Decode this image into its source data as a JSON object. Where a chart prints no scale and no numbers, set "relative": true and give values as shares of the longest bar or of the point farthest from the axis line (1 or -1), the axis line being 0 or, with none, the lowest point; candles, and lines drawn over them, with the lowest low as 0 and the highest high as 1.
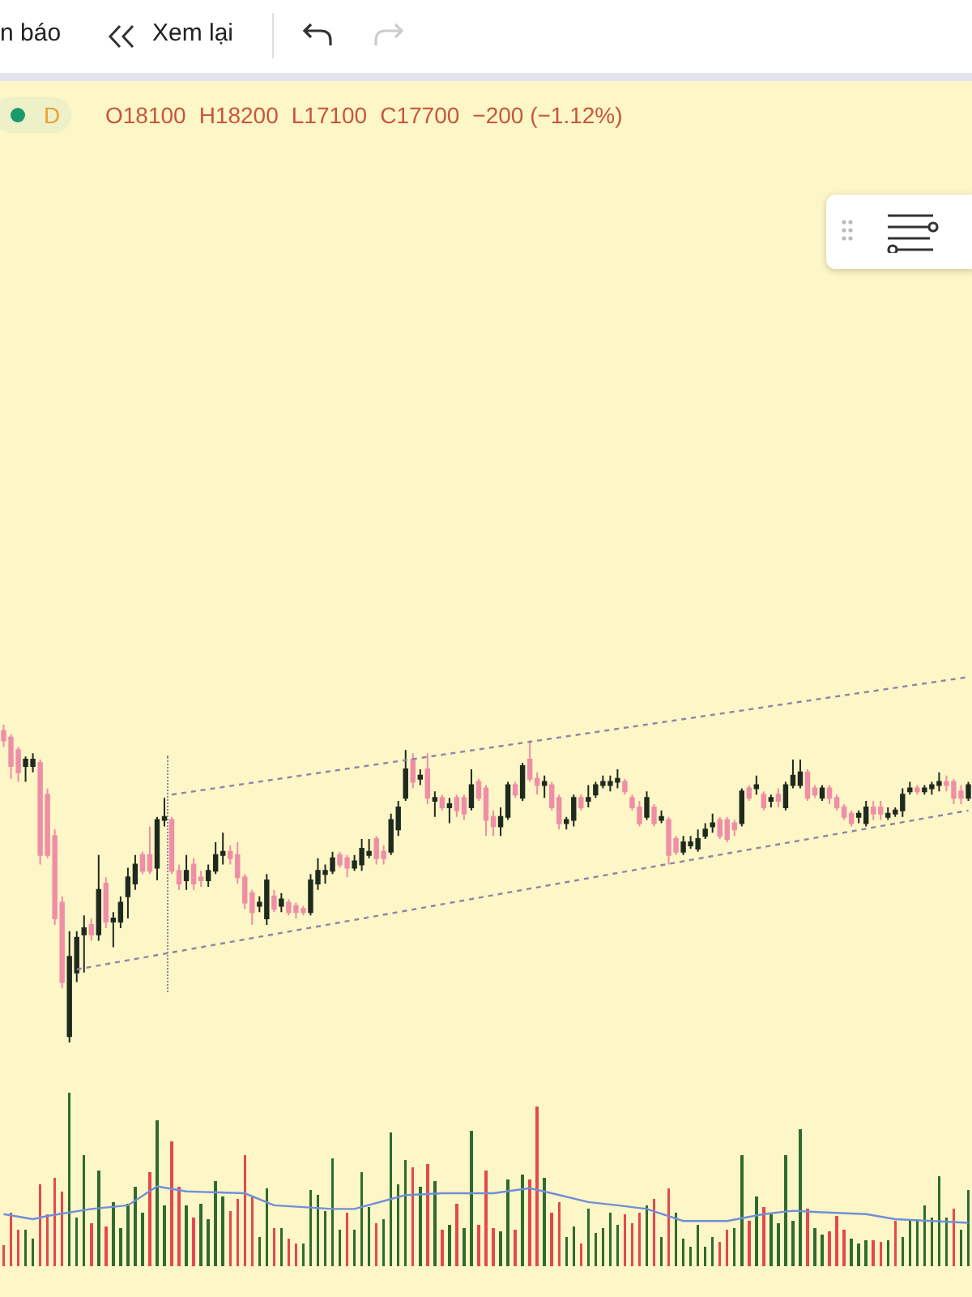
{
  "chart_data": [
    {
      "type": "candlestick",
      "relative": true,
      "colors": [
        "#ef8ea6",
        "#ef8ea6",
        "#ef8ea6",
        "#1f2a1f",
        "#1f2a1f",
        "#ef8ea6",
        "#ef8ea6",
        "#ef8ea6",
        "#ef8ea6",
        "#1f2a1f",
        "#1f2a1f",
        "#1f2a1f",
        "#ef8ea6",
        "#1f2a1f",
        "#ef8ea6",
        "#1f2a1f",
        "#1f2a1f",
        "#1f2a1f",
        "#1f2a1f",
        "#ef8ea6",
        "#ef8ea6",
        "#1f2a1f",
        "#1f2a1f",
        "#ef8ea6",
        "#ef8ea6",
        "#1f2a1f",
        "#ef8ea6",
        "#ef8ea6",
        "#1f2a1f",
        "#1f2a1f",
        "#1f2a1f",
        "#ef8ea6",
        "#ef8ea6",
        "#ef8ea6",
        "#ef8ea6",
        "#1f2a1f",
        "#1f2a1f",
        "#ef8ea6",
        "#1f2a1f",
        "#ef8ea6",
        "#ef8ea6",
        "#ef8ea6",
        "#1f2a1f",
        "#1f2a1f",
        "#1f2a1f",
        "#1f2a1f",
        "#ef8ea6",
        "#ef8ea6",
        "#1f2a1f",
        "#1f2a1f",
        "#1f2a1f",
        "#ef8ea6",
        "#ef8ea6",
        "#1f2a1f",
        "#1f2a1f",
        "#1f2a1f",
        "#ef8ea6",
        "#1f2a1f",
        "#ef8ea6",
        "#1f2a1f",
        "#ef8ea6",
        "#1f2a1f",
        "#ef8ea6",
        "#ef8ea6",
        "#1f2a1f",
        "#ef8ea6",
        "#ef8ea6",
        "#ef8ea6",
        "#1f2a1f",
        "#1f2a1f",
        "#ef8ea6",
        "#1f2a1f",
        "#ef8ea6",
        "#ef8ea6",
        "#1f2a1f",
        "#ef8ea6",
        "#ef8ea6",
        "#1f2a1f",
        "#1f2a1f",
        "#ef8ea6",
        "#1f2a1f",
        "#1f2a1f",
        "#1f2a1f",
        "#1f2a1f",
        "#1f2a1f",
        "#ef8ea6",
        "#ef8ea6",
        "#ef8ea6",
        "#1f2a1f",
        "#ef8ea6",
        "#1f2a1f",
        "#ef8ea6",
        "#ef8ea6",
        "#1f2a1f",
        "#1f2a1f",
        "#1f2a1f",
        "#1f2a1f",
        "#1f2a1f",
        "#ef8ea6",
        "#ef8ea6",
        "#ef8ea6",
        "#1f2a1f",
        "#ef8ea6",
        "#1f2a1f",
        "#ef8ea6",
        "#1f2a1f",
        "#ef8ea6",
        "#1f2a1f",
        "#1f2a1f",
        "#1f2a1f",
        "#ef8ea6",
        "#ef8ea6",
        "#1f2a1f",
        "#ef8ea6",
        "#ef8ea6",
        "#ef8ea6",
        "#ef8ea6",
        "#1f2a1f",
        "#1f2a1f",
        "#ef8ea6",
        "#ef8ea6",
        "#1f2a1f",
        "#1f2a1f",
        "#1f2a1f",
        "#1f2a1f",
        "#ef8ea6",
        "#1f2a1f",
        "#1f2a1f",
        "#1f2a1f",
        "#ef8ea6",
        "#ef8ea6",
        "#ef8ea6",
        "#1f2a1f"
      ],
      "annotations": [
        "n báo",
        "Xem lại",
        "D",
        "O18100",
        "H18200",
        "L17100",
        "C17700",
        "−200 (−1.12%)"
      ],
      "categories": [
        null,
        null,
        null,
        null,
        null,
        null,
        null,
        null,
        null,
        null,
        null,
        null,
        null,
        null,
        null,
        null,
        null,
        null,
        null,
        null,
        null,
        null,
        null,
        null,
        null,
        null,
        null,
        null,
        null,
        null,
        null,
        null,
        null,
        null,
        null,
        null,
        null,
        null,
        null,
        null,
        null,
        null,
        null,
        null,
        null,
        null,
        null,
        null,
        null,
        null,
        null,
        null,
        null,
        null,
        null,
        null,
        null,
        null,
        null,
        null,
        null,
        null,
        null,
        null,
        null,
        null,
        null,
        null,
        null,
        null,
        null,
        null,
        null,
        null,
        null,
        null,
        null,
        null,
        null,
        null,
        null,
        null,
        null,
        null,
        null,
        null,
        null,
        null,
        null,
        null,
        null,
        null,
        null,
        null,
        null,
        null,
        null,
        null,
        null,
        null,
        null,
        null,
        null,
        null,
        null,
        null,
        null,
        null,
        null,
        null,
        null,
        null,
        null,
        null,
        null,
        null,
        null,
        null,
        null,
        null,
        null,
        null,
        null,
        null,
        null,
        null,
        null,
        null,
        null,
        null,
        null,
        null,
        null
      ],
      "ohlc": [
        [
          0.98,
          1.0,
          0.93,
          0.95
        ],
        [
          0.96,
          0.97,
          0.83,
          0.87
        ],
        [
          0.92,
          0.93,
          0.82,
          0.85
        ],
        [
          0.87,
          0.9,
          0.82,
          0.89
        ],
        [
          0.87,
          0.91,
          0.85,
          0.89
        ],
        [
          0.88,
          0.89,
          0.56,
          0.59
        ],
        [
          0.78,
          0.8,
          0.58,
          0.59
        ],
        [
          0.65,
          0.67,
          0.37,
          0.39
        ],
        [
          0.44,
          0.46,
          0.17,
          0.19
        ],
        [
          0.02,
          0.35,
          0,
          0.27
        ],
        [
          0.22,
          0.35,
          0.19,
          0.33
        ],
        [
          0.34,
          0.4,
          0.22,
          0.36
        ],
        [
          0.37,
          0.39,
          0.32,
          0.34
        ],
        [
          0.34,
          0.59,
          0.32,
          0.48
        ],
        [
          0.5,
          0.52,
          0.36,
          0.38
        ],
        [
          0.38,
          0.41,
          0.3,
          0.39
        ],
        [
          0.38,
          0.46,
          0.36,
          0.44
        ],
        [
          0.46,
          0.55,
          0.39,
          0.52
        ],
        [
          0.5,
          0.59,
          0.48,
          0.56
        ],
        [
          0.59,
          0.6,
          0.53,
          0.54
        ],
        [
          0.59,
          0.68,
          0.53,
          0.54
        ],
        [
          0.55,
          0.71,
          0.51,
          0.7
        ],
        [
          0.7,
          0.77,
          0.68,
          0.71
        ],
        [
          0.7,
          0.71,
          0.53,
          0.54
        ],
        [
          0.54,
          0.56,
          0.48,
          0.5
        ],
        [
          0.51,
          0.59,
          0.48,
          0.54
        ],
        [
          0.56,
          0.58,
          0.48,
          0.5
        ],
        [
          0.52,
          0.54,
          0.49,
          0.51
        ],
        [
          0.51,
          0.56,
          0.49,
          0.54
        ],
        [
          0.54,
          0.63,
          0.53,
          0.59
        ],
        [
          0.59,
          0.66,
          0.56,
          0.6
        ],
        [
          0.6,
          0.62,
          0.56,
          0.58
        ],
        [
          0.59,
          0.63,
          0.5,
          0.52
        ],
        [
          0.52,
          0.53,
          0.42,
          0.44
        ],
        [
          0.47,
          0.48,
          0.37,
          0.41
        ],
        [
          0.43,
          0.46,
          0.41,
          0.44
        ],
        [
          0.39,
          0.53,
          0.37,
          0.51
        ],
        [
          0.46,
          0.48,
          0.41,
          0.42
        ],
        [
          0.43,
          0.47,
          0.41,
          0.45
        ],
        [
          0.44,
          0.45,
          0.4,
          0.41
        ],
        [
          0.43,
          0.44,
          0.39,
          0.41
        ],
        [
          0.42,
          0.43,
          0.4,
          0.41
        ],
        [
          0.41,
          0.53,
          0.4,
          0.51
        ],
        [
          0.5,
          0.58,
          0.48,
          0.54
        ],
        [
          0.53,
          0.56,
          0.5,
          0.54
        ],
        [
          0.54,
          0.6,
          0.53,
          0.58
        ],
        [
          0.59,
          0.6,
          0.55,
          0.56
        ],
        [
          0.58,
          0.59,
          0.52,
          0.55
        ],
        [
          0.55,
          0.59,
          0.54,
          0.57
        ],
        [
          0.56,
          0.64,
          0.54,
          0.61
        ],
        [
          0.59,
          0.64,
          0.58,
          0.6
        ],
        [
          0.64,
          0.65,
          0.56,
          0.58
        ],
        [
          0.6,
          0.62,
          0.56,
          0.58
        ],
        [
          0.6,
          0.72,
          0.59,
          0.7
        ],
        [
          0.67,
          0.76,
          0.65,
          0.74
        ],
        [
          0.77,
          0.92,
          0.76,
          0.86
        ],
        [
          0.89,
          0.91,
          0.8,
          0.82
        ],
        [
          0.83,
          0.86,
          0.81,
          0.84
        ],
        [
          0.86,
          0.91,
          0.75,
          0.77
        ],
        [
          0.76,
          0.79,
          0.71,
          0.77
        ],
        [
          0.77,
          0.78,
          0.73,
          0.74
        ],
        [
          0.74,
          0.77,
          0.69,
          0.75
        ],
        [
          0.77,
          0.78,
          0.71,
          0.73
        ],
        [
          0.77,
          0.78,
          0.7,
          0.72
        ],
        [
          0.74,
          0.86,
          0.73,
          0.81
        ],
        [
          0.82,
          0.83,
          0.76,
          0.77
        ],
        [
          0.8,
          0.81,
          0.65,
          0.7
        ],
        [
          0.71,
          0.73,
          0.65,
          0.68
        ],
        [
          0.68,
          0.74,
          0.65,
          0.71
        ],
        [
          0.71,
          0.82,
          0.7,
          0.81
        ],
        [
          0.81,
          0.82,
          0.77,
          0.78
        ],
        [
          0.77,
          0.88,
          0.76,
          0.87
        ],
        [
          0.89,
          0.95,
          0.82,
          0.83
        ],
        [
          0.83,
          0.85,
          0.78,
          0.81
        ],
        [
          0.81,
          0.84,
          0.77,
          0.82
        ],
        [
          0.81,
          0.82,
          0.73,
          0.74
        ],
        [
          0.77,
          0.78,
          0.67,
          0.69
        ],
        [
          0.69,
          0.71,
          0.67,
          0.7
        ],
        [
          0.7,
          0.78,
          0.68,
          0.77
        ],
        [
          0.77,
          0.78,
          0.73,
          0.74
        ],
        [
          0.76,
          0.81,
          0.74,
          0.77
        ],
        [
          0.78,
          0.82,
          0.77,
          0.81
        ],
        [
          0.81,
          0.84,
          0.8,
          0.82
        ],
        [
          0.81,
          0.84,
          0.79,
          0.82
        ],
        [
          0.82,
          0.86,
          0.8,
          0.83
        ],
        [
          0.82,
          0.83,
          0.78,
          0.79
        ],
        [
          0.77,
          0.78,
          0.73,
          0.74
        ],
        [
          0.74,
          0.76,
          0.68,
          0.69
        ],
        [
          0.71,
          0.79,
          0.7,
          0.77
        ],
        [
          0.74,
          0.75,
          0.68,
          0.69
        ],
        [
          0.7,
          0.73,
          0.69,
          0.71
        ],
        [
          0.7,
          0.71,
          0.56,
          0.59
        ],
        [
          0.64,
          0.65,
          0.59,
          0.6
        ],
        [
          0.6,
          0.65,
          0.59,
          0.63
        ],
        [
          0.62,
          0.65,
          0.61,
          0.63
        ],
        [
          0.61,
          0.67,
          0.6,
          0.64
        ],
        [
          0.65,
          0.69,
          0.64,
          0.67
        ],
        [
          0.68,
          0.72,
          0.66,
          0.69
        ],
        [
          0.7,
          0.71,
          0.64,
          0.65
        ],
        [
          0.7,
          0.71,
          0.63,
          0.64
        ],
        [
          0.69,
          0.7,
          0.65,
          0.67
        ],
        [
          0.69,
          0.8,
          0.68,
          0.79
        ],
        [
          0.8,
          0.81,
          0.76,
          0.77
        ],
        [
          0.8,
          0.84,
          0.78,
          0.81
        ],
        [
          0.78,
          0.79,
          0.73,
          0.74
        ],
        [
          0.76,
          0.78,
          0.74,
          0.77
        ],
        [
          0.78,
          0.8,
          0.74,
          0.76
        ],
        [
          0.74,
          0.82,
          0.73,
          0.81
        ],
        [
          0.81,
          0.89,
          0.8,
          0.84
        ],
        [
          0.81,
          0.89,
          0.8,
          0.85
        ],
        [
          0.85,
          0.86,
          0.76,
          0.77
        ],
        [
          0.8,
          0.81,
          0.77,
          0.78
        ],
        [
          0.77,
          0.81,
          0.76,
          0.8
        ],
        [
          0.8,
          0.81,
          0.75,
          0.77
        ],
        [
          0.77,
          0.78,
          0.73,
          0.74
        ],
        [
          0.74,
          0.75,
          0.7,
          0.71
        ],
        [
          0.72,
          0.73,
          0.68,
          0.69
        ],
        [
          0.71,
          0.73,
          0.69,
          0.72
        ],
        [
          0.69,
          0.76,
          0.68,
          0.74
        ],
        [
          0.74,
          0.76,
          0.7,
          0.72
        ],
        [
          0.74,
          0.76,
          0.7,
          0.72
        ],
        [
          0.71,
          0.74,
          0.7,
          0.72
        ],
        [
          0.72,
          0.74,
          0.71,
          0.73
        ],
        [
          0.73,
          0.8,
          0.71,
          0.78
        ],
        [
          0.79,
          0.82,
          0.78,
          0.8
        ],
        [
          0.8,
          0.81,
          0.78,
          0.79
        ],
        [
          0.79,
          0.81,
          0.78,
          0.8
        ],
        [
          0.8,
          0.82,
          0.78,
          0.81
        ],
        [
          0.81,
          0.85,
          0.79,
          0.82
        ],
        [
          0.82,
          0.84,
          0.79,
          0.81
        ],
        [
          0.82,
          0.83,
          0.75,
          0.77
        ],
        [
          0.79,
          0.81,
          0.75,
          0.77
        ],
        [
          0.77,
          0.82,
          0.76,
          0.81
        ]
      ],
      "series": [
        {
          "type": "line",
          "values": [
            null,
            null,
            null,
            null,
            null,
            null,
            null,
            null,
            null,
            null,
            null,
            null,
            null,
            null,
            null,
            null,
            null,
            null,
            null,
            null,
            null,
            null,
            null,
            0.78,
            null,
            null,
            null,
            null,
            null,
            null,
            null,
            null,
            null,
            null,
            null,
            null,
            null,
            null,
            null,
            null,
            null,
            null,
            null,
            null,
            null,
            null,
            null,
            null,
            null,
            null,
            null,
            null,
            null,
            null,
            null,
            null,
            null,
            null,
            null,
            null,
            null,
            null,
            null,
            null,
            null,
            null,
            null,
            null,
            null,
            null,
            null,
            null,
            null,
            null,
            null,
            null,
            null,
            null,
            null,
            null,
            null,
            null,
            null,
            null,
            null,
            null,
            null,
            null,
            null,
            null,
            null,
            null,
            null,
            null,
            null,
            null,
            null,
            null,
            null,
            null,
            null,
            null,
            null,
            null,
            null,
            null,
            null,
            null,
            null,
            null,
            null,
            null,
            null,
            null,
            null,
            null,
            null,
            null,
            null,
            null,
            null,
            null,
            null,
            null,
            null,
            null,
            null,
            null,
            null,
            null,
            null,
            null,
            1.15
          ],
          "color": "#8e86a6",
          "line_style": "dotted"
        },
        {
          "type": "line",
          "values": [
            null,
            null,
            null,
            null,
            null,
            null,
            null,
            null,
            null,
            null,
            0.23,
            null,
            null,
            null,
            null,
            null,
            null,
            null,
            null,
            null,
            null,
            null,
            null,
            null,
            null,
            null,
            null,
            null,
            null,
            null,
            null,
            null,
            null,
            null,
            null,
            null,
            null,
            null,
            null,
            null,
            null,
            null,
            null,
            null,
            null,
            null,
            null,
            null,
            null,
            null,
            null,
            null,
            null,
            null,
            null,
            null,
            null,
            null,
            null,
            null,
            null,
            null,
            null,
            null,
            null,
            null,
            null,
            null,
            null,
            null,
            null,
            null,
            null,
            null,
            null,
            null,
            null,
            null,
            null,
            null,
            null,
            null,
            null,
            null,
            null,
            null,
            null,
            null,
            null,
            null,
            null,
            null,
            null,
            null,
            null,
            null,
            null,
            null,
            null,
            null,
            null,
            null,
            null,
            null,
            null,
            null,
            null,
            null,
            null,
            null,
            null,
            null,
            null,
            null,
            null,
            null,
            null,
            null,
            null,
            null,
            null,
            null,
            null,
            null,
            null,
            null,
            null,
            null,
            null,
            null,
            null,
            null,
            0.73
          ],
          "color": "#8e86a6",
          "line_style": "dotted"
        }
      ]
    },
    {
      "type": "bar",
      "relative": true,
      "categories": [
        null,
        null,
        null,
        null,
        null,
        null,
        null,
        null,
        null,
        null,
        null,
        null,
        null,
        null,
        null,
        null,
        null,
        null,
        null,
        null,
        null,
        null,
        null,
        null,
        null,
        null,
        null,
        null,
        null,
        null,
        null,
        null,
        null,
        null,
        null,
        null,
        null,
        null,
        null,
        null,
        null,
        null,
        null,
        null,
        null,
        null,
        null,
        null,
        null,
        null,
        null,
        null,
        null,
        null,
        null,
        null,
        null,
        null,
        null,
        null,
        null,
        null,
        null,
        null,
        null,
        null,
        null,
        null,
        null,
        null,
        null,
        null,
        null,
        null,
        null,
        null,
        null,
        null,
        null,
        null,
        null,
        null,
        null,
        null,
        null,
        null,
        null,
        null,
        null,
        null,
        null,
        null,
        null,
        null,
        null,
        null,
        null,
        null,
        null,
        null,
        null,
        null,
        null,
        null,
        null,
        null,
        null,
        null,
        null,
        null,
        null,
        null,
        null,
        null,
        null,
        null,
        null,
        null,
        null,
        null,
        null,
        null,
        null,
        null,
        null,
        null,
        null,
        null,
        null,
        null,
        null,
        null,
        null
      ],
      "series": [
        {
          "values": [
            0.12,
            0.31,
            0.21,
            0.21,
            0.16,
            0.47,
            0.3,
            0.51,
            0.43,
            1.0,
            0.28,
            0.64,
            0.25,
            0.55,
            0.23,
            0.37,
            0.22,
            0.36,
            0.46,
            0.31,
            0.54,
            0.84,
            0.35,
            0.72,
            0.46,
            0.35,
            0.28,
            0.36,
            0.27,
            0.49,
            0.4,
            0.32,
            0.39,
            0.64,
            0.4,
            0.17,
            0.45,
            0.22,
            0.22,
            0.16,
            0.13,
            0.13,
            0.44,
            0.41,
            0.32,
            0.62,
            0.21,
            0.31,
            0.21,
            0.54,
            0.34,
            0.25,
            0.27,
            0.77,
            0.47,
            0.61,
            0.57,
            0.46,
            0.59,
            0.49,
            0.21,
            0.24,
            0.36,
            0.22,
            0.78,
            0.24,
            0.55,
            0.22,
            0.2,
            0.5,
            0.21,
            0.53,
            0.5,
            0.92,
            0.51,
            0.31,
            0.37,
            0.17,
            0.23,
            0.13,
            0.33,
            0.19,
            0.22,
            0.31,
            0.24,
            0.3,
            0.25,
            0.31,
            0.35,
            0.39,
            0.17,
            0.45,
            0.31,
            0.16,
            0.11,
            0.24,
            0.11,
            0.17,
            0.14,
            0.21,
            0.22,
            0.64,
            0.26,
            0.4,
            0.34,
            0.3,
            0.25,
            0.64,
            0.26,
            0.79,
            0.33,
            0.22,
            0.18,
            0.2,
            0.29,
            0.21,
            0.16,
            0.13,
            0.15,
            0.15,
            0.14,
            0.15,
            0.26,
            0.17,
            0.27,
            0.27,
            0.35,
            0.28,
            0.52,
            0.28,
            0.33,
            0.21,
            0.44
          ],
          "colors": [
            "#e5484d",
            "#e5484d",
            "#e5484d",
            "#2f6b2f",
            "#2f6b2f",
            "#e5484d",
            "#e5484d",
            "#e5484d",
            "#e5484d",
            "#2f6b2f",
            "#2f6b2f",
            "#2f6b2f",
            "#e5484d",
            "#2f6b2f",
            "#e5484d",
            "#2f6b2f",
            "#2f6b2f",
            "#2f6b2f",
            "#2f6b2f",
            "#2f6b2f",
            "#e5484d",
            "#2f6b2f",
            "#2f6b2f",
            "#e5484d",
            "#e5484d",
            "#2f6b2f",
            "#e5484d",
            "#2f6b2f",
            "#2f6b2f",
            "#2f6b2f",
            "#2f6b2f",
            "#e5484d",
            "#e5484d",
            "#e5484d",
            "#e5484d",
            "#2f6b2f",
            "#2f6b2f",
            "#e5484d",
            "#2f6b2f",
            "#e5484d",
            "#e5484d",
            "#2f6b2f",
            "#2f6b2f",
            "#2f6b2f",
            "#2f6b2f",
            "#2f6b2f",
            "#2f6b2f",
            "#e5484d",
            "#2f6b2f",
            "#2f6b2f",
            "#2f6b2f",
            "#e5484d",
            "#2f6b2f",
            "#2f6b2f",
            "#2f6b2f",
            "#2f6b2f",
            "#e5484d",
            "#2f6b2f",
            "#e5484d",
            "#2f6b2f",
            "#e5484d",
            "#2f6b2f",
            "#e5484d",
            "#2f6b2f",
            "#2f6b2f",
            "#e5484d",
            "#e5484d",
            "#e5484d",
            "#2f6b2f",
            "#2f6b2f",
            "#e5484d",
            "#2f6b2f",
            "#e5484d",
            "#e5484d",
            "#2f6b2f",
            "#e5484d",
            "#e5484d",
            "#2f6b2f",
            "#2f6b2f",
            "#e5484d",
            "#2f6b2f",
            "#2f6b2f",
            "#2f6b2f",
            "#2f6b2f",
            "#2f6b2f",
            "#e5484d",
            "#e5484d",
            "#e5484d",
            "#2f6b2f",
            "#e5484d",
            "#2f6b2f",
            "#e5484d",
            "#2f6b2f",
            "#2f6b2f",
            "#2f6b2f",
            "#2f6b2f",
            "#2f6b2f",
            "#2f6b2f",
            "#e5484d",
            "#e5484d",
            "#2f6b2f",
            "#2f6b2f",
            "#e5484d",
            "#2f6b2f",
            "#e5484d",
            "#2f6b2f",
            "#2f6b2f",
            "#2f6b2f",
            "#2f6b2f",
            "#2f6b2f",
            "#e5484d",
            "#2f6b2f",
            "#2f6b2f",
            "#e5484d",
            "#e5484d",
            "#e5484d",
            "#2f6b2f",
            "#2f6b2f",
            "#2f6b2f",
            "#e5484d",
            "#e5484d",
            "#2f6b2f",
            "#e5484d",
            "#2f6b2f",
            "#2f6b2f",
            "#2f6b2f",
            "#2f6b2f",
            "#2f6b2f",
            "#2f6b2f",
            "#2f6b2f",
            "#e5484d",
            "#2f6b2f",
            "#2f6b2f"
          ]
        }
      ]
    },
    {
      "type": "line",
      "relative": true,
      "categories": [
        null,
        null,
        null,
        null,
        null,
        null,
        null,
        null,
        null,
        null,
        null,
        null,
        null,
        null,
        null,
        null,
        null,
        null,
        null,
        null,
        null,
        null,
        null,
        null,
        null,
        null,
        null,
        null,
        null,
        null,
        null,
        null,
        null,
        null,
        null,
        null,
        null,
        null,
        null,
        null,
        null,
        null,
        null,
        null,
        null,
        null,
        null,
        null,
        null,
        null,
        null,
        null,
        null,
        null,
        null,
        null,
        null,
        null,
        null,
        null,
        null,
        null,
        null,
        null,
        null,
        null,
        null,
        null,
        null,
        null,
        null,
        null,
        null,
        null,
        null,
        null,
        null,
        null,
        null,
        null,
        null,
        null,
        null,
        null,
        null,
        null,
        null,
        null,
        null,
        null,
        null,
        null,
        null,
        null,
        null,
        null,
        null,
        null,
        null,
        null,
        null,
        null,
        null,
        null,
        null,
        null,
        null,
        null,
        null,
        null,
        null,
        null,
        null,
        null,
        null,
        null,
        null,
        null,
        null,
        null,
        null,
        null,
        null,
        null,
        null,
        null,
        null,
        null,
        null,
        null,
        null,
        null,
        null
      ],
      "series": [
        {
          "type": "line",
          "values": [
            0.24,
            null,
            null,
            null,
            0.1,
            null,
            0.19,
            null,
            null,
            null,
            null,
            null,
            0.38,
            null,
            null,
            null,
            null,
            0.48,
            null,
            null,
            null,
            1.0,
            null,
            null,
            null,
            0.86,
            null,
            null,
            null,
            null,
            null,
            null,
            null,
            0.81,
            null,
            null,
            null,
            0.48,
            null,
            null,
            null,
            null,
            null,
            null,
            null,
            0.38,
            null,
            null,
            0.38,
            null,
            null,
            null,
            null,
            null,
            null,
            0.76,
            null,
            null,
            null,
            null,
            0.81,
            null,
            null,
            null,
            null,
            null,
            null,
            0.81,
            null,
            null,
            null,
            null,
            0.95,
            null,
            null,
            0.81,
            null,
            null,
            null,
            null,
            0.57,
            null,
            null,
            null,
            0.48,
            null,
            null,
            null,
            0.38,
            null,
            null,
            null,
            null,
            0.05,
            null,
            null,
            null,
            null,
            null,
            0.05,
            null,
            null,
            null,
            null,
            0.24,
            null,
            null,
            null,
            0.33,
            null,
            null,
            null,
            0.29,
            null,
            null,
            null,
            null,
            null,
            0.24,
            null,
            null,
            null,
            0.1,
            null,
            null,
            null,
            null,
            0.05,
            null,
            null,
            null,
            null,
            0
          ],
          "color": "#6f8fd8"
        }
      ]
    }
  ]
}
